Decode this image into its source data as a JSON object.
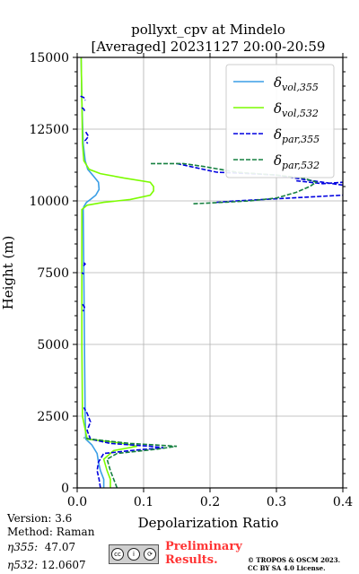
{
  "chart_data": {
    "type": "line",
    "title": "pollyxt_cpv at Mindelo",
    "subtitle": "[Averaged] 20231127 20:00-20:59",
    "xlabel": "Depolarization Ratio",
    "ylabel": "Height (m)",
    "xlim": [
      0,
      0.4
    ],
    "ylim": [
      0,
      15000
    ],
    "xticks": [
      "0.0",
      "0.1",
      "0.2",
      "0.3",
      "0.4"
    ],
    "yticks": [
      "0",
      "2500",
      "5000",
      "7500",
      "10000",
      "12500",
      "15000"
    ],
    "grid": true,
    "legend_position": "top-right",
    "series": [
      {
        "name": "δvol,355",
        "sub": "vol,355",
        "color": "#3a9ee6",
        "style": "solid",
        "points": [
          [
            0.04,
            0
          ],
          [
            0.04,
            300
          ],
          [
            0.035,
            600
          ],
          [
            0.032,
            900
          ],
          [
            0.03,
            1200
          ],
          [
            0.022,
            1500
          ],
          [
            0.013,
            1700
          ],
          [
            0.012,
            2500
          ],
          [
            0.011,
            5000
          ],
          [
            0.01,
            7500
          ],
          [
            0.009,
            9700
          ],
          [
            0.01,
            9800
          ],
          [
            0.014,
            9950
          ],
          [
            0.02,
            10050
          ],
          [
            0.028,
            10200
          ],
          [
            0.033,
            10400
          ],
          [
            0.032,
            10650
          ],
          [
            0.025,
            10850
          ],
          [
            0.016,
            11100
          ],
          [
            0.012,
            11400
          ],
          [
            0.009,
            12000
          ],
          [
            0.007,
            13500
          ],
          [
            0.006,
            15000
          ]
        ]
      },
      {
        "name": "δvol,532",
        "sub": "vol,532",
        "color": "#7cfc00",
        "style": "solid",
        "points": [
          [
            0.05,
            0
          ],
          [
            0.05,
            300
          ],
          [
            0.045,
            600
          ],
          [
            0.04,
            1000
          ],
          [
            0.055,
            1300
          ],
          [
            0.09,
            1450
          ],
          [
            0.07,
            1550
          ],
          [
            0.015,
            1700
          ],
          [
            0.008,
            2500
          ],
          [
            0.007,
            5000
          ],
          [
            0.007,
            7500
          ],
          [
            0.007,
            9700
          ],
          [
            0.015,
            9850
          ],
          [
            0.04,
            9950
          ],
          [
            0.08,
            10050
          ],
          [
            0.11,
            10200
          ],
          [
            0.115,
            10350
          ],
          [
            0.115,
            10500
          ],
          [
            0.11,
            10650
          ],
          [
            0.07,
            10800
          ],
          [
            0.035,
            10950
          ],
          [
            0.018,
            11100
          ],
          [
            0.01,
            11400
          ],
          [
            0.008,
            12000
          ],
          [
            0.007,
            13500
          ],
          [
            0.006,
            15000
          ]
        ]
      },
      {
        "name": "δpar,355",
        "sub": "par,355",
        "color": "#0000e0",
        "style": "dashed",
        "points": [
          [
            0.035,
            0
          ],
          [
            0.033,
            300
          ],
          [
            0.03,
            600
          ],
          [
            0.032,
            900
          ],
          [
            0.04,
            1200
          ],
          [
            0.08,
            1300
          ],
          [
            0.13,
            1400
          ],
          [
            0.11,
            1450
          ],
          [
            0.05,
            1550
          ],
          [
            0.02,
            1700
          ],
          [
            0.015,
            2000
          ],
          [
            0.02,
            2300
          ],
          [
            0.015,
            2600
          ],
          [
            0.01,
            2800
          ]
        ]
      },
      {
        "name": "δpar,532",
        "sub": "par,532",
        "color": "#168040",
        "style": "dashed",
        "points": [
          [
            0.06,
            0
          ],
          [
            0.055,
            300
          ],
          [
            0.05,
            600
          ],
          [
            0.045,
            1000
          ],
          [
            0.06,
            1200
          ],
          [
            0.12,
            1350
          ],
          [
            0.15,
            1450
          ],
          [
            0.08,
            1550
          ],
          [
            0.02,
            1700
          ],
          [
            0.01,
            1750
          ]
        ]
      }
    ],
    "fragments": [
      {
        "series": 2,
        "points": [
          [
            0.005,
            13650
          ],
          [
            0.01,
            13600
          ],
          [
            0.012,
            13500
          ]
        ]
      },
      {
        "series": 2,
        "points": [
          [
            0.007,
            13250
          ],
          [
            0.01,
            13200
          ],
          [
            0.012,
            13100
          ]
        ]
      },
      {
        "series": 2,
        "points": [
          [
            0.013,
            12400
          ],
          [
            0.017,
            12250
          ],
          [
            0.012,
            12100
          ],
          [
            0.016,
            12000
          ]
        ]
      },
      {
        "series": 2,
        "points": [
          [
            0.01,
            7850
          ],
          [
            0.012,
            7800
          ],
          [
            0.008,
            7700
          ]
        ]
      },
      {
        "series": 2,
        "points": [
          [
            0.007,
            7500
          ],
          [
            0.01,
            7450
          ]
        ]
      },
      {
        "series": 2,
        "points": [
          [
            0.008,
            6400
          ],
          [
            0.011,
            6300
          ],
          [
            0.009,
            6150
          ]
        ]
      },
      {
        "series": 2,
        "points": [
          [
            0.21,
            9950
          ],
          [
            0.24,
            10000
          ],
          [
            0.28,
            10050
          ],
          [
            0.32,
            10100
          ],
          [
            0.36,
            10150
          ],
          [
            0.4,
            10200
          ]
        ]
      },
      {
        "series": 2,
        "points": [
          [
            0.15,
            11300
          ],
          [
            0.18,
            11150
          ],
          [
            0.21,
            11000
          ],
          [
            0.26,
            10950
          ],
          [
            0.3,
            10900
          ],
          [
            0.34,
            10750
          ],
          [
            0.37,
            10650
          ],
          [
            0.4,
            10550
          ]
        ]
      },
      {
        "series": 2,
        "points": [
          [
            0.33,
            10700
          ],
          [
            0.37,
            10600
          ],
          [
            0.4,
            10650
          ]
        ]
      },
      {
        "series": 3,
        "points": [
          [
            0.175,
            9900
          ],
          [
            0.22,
            9950
          ],
          [
            0.26,
            10000
          ],
          [
            0.3,
            10100
          ],
          [
            0.33,
            10300
          ],
          [
            0.35,
            10500
          ],
          [
            0.36,
            10650
          ],
          [
            0.34,
            10800
          ],
          [
            0.3,
            10900
          ],
          [
            0.24,
            11000
          ],
          [
            0.19,
            11200
          ],
          [
            0.16,
            11300
          ],
          [
            0.11,
            11300
          ]
        ]
      }
    ]
  },
  "footer": {
    "version": "Version: 3.6",
    "method": "Method: Raman",
    "eta355_label": "η355:",
    "eta355_value": "47.07",
    "eta532_label": "η532:",
    "eta532_value": "12.0607",
    "preliminary_line1": "Preliminary",
    "preliminary_line2": "Results.",
    "copyright_line1": "© TROPOS & OSCM 2023.",
    "copyright_line2": "CC BY SA 4.0 License."
  }
}
